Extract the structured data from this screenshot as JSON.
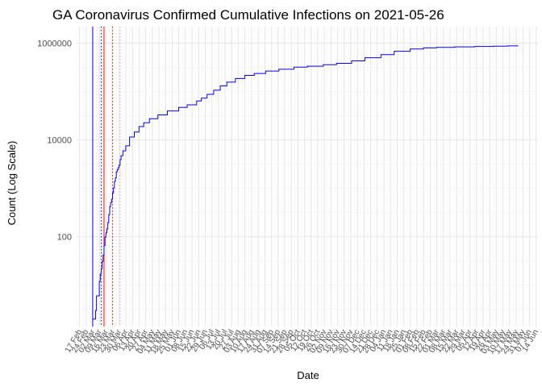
{
  "chart_data": {
    "type": "line",
    "title": "GA Coronavirus Confirmed Cumulative Infections on 2021-05-26",
    "xlabel": "Date",
    "ylabel": "Count (Log Scale)",
    "y_scale": "log10",
    "ylim": [
      1.4,
      2200000
    ],
    "xlim": [
      "2020-02-14",
      "2021-06-17"
    ],
    "grid": true,
    "legend": "none",
    "y_ticks": [
      {
        "value": 100,
        "label": "100"
      },
      {
        "value": 10000,
        "label": "10000"
      },
      {
        "value": 1000000,
        "label": "1000000"
      }
    ],
    "x_ticks": [
      {
        "date": "2020-02-17",
        "label": "17 Feb"
      },
      {
        "date": "2020-02-24",
        "label": "24 Feb"
      },
      {
        "date": "2020-03-02",
        "label": "02 Mar"
      },
      {
        "date": "2020-03-09",
        "label": "09 Mar"
      },
      {
        "date": "2020-03-16",
        "label": "16 Mar"
      },
      {
        "date": "2020-03-23",
        "label": "23 Mar"
      },
      {
        "date": "2020-03-30",
        "label": "30 Mar"
      },
      {
        "date": "2020-04-06",
        "label": "06 Apr"
      },
      {
        "date": "2020-04-13",
        "label": "13 Apr"
      },
      {
        "date": "2020-04-20",
        "label": "20 Apr"
      },
      {
        "date": "2020-04-27",
        "label": "27 Apr"
      },
      {
        "date": "2020-05-04",
        "label": "04 May"
      },
      {
        "date": "2020-05-11",
        "label": "11 May"
      },
      {
        "date": "2020-05-18",
        "label": "18 May"
      },
      {
        "date": "2020-05-25",
        "label": "25 May"
      },
      {
        "date": "2020-06-01",
        "label": "01 Jun"
      },
      {
        "date": "2020-06-08",
        "label": "08 Jun"
      },
      {
        "date": "2020-06-15",
        "label": "15 Jun"
      },
      {
        "date": "2020-06-22",
        "label": "22 Jun"
      },
      {
        "date": "2020-06-29",
        "label": "29 Jun"
      },
      {
        "date": "2020-07-06",
        "label": "06 Jul"
      },
      {
        "date": "2020-07-13",
        "label": "13 Jul"
      },
      {
        "date": "2020-07-20",
        "label": "20 Jul"
      },
      {
        "date": "2020-07-27",
        "label": "27 Jul"
      },
      {
        "date": "2020-08-03",
        "label": "03 Aug"
      },
      {
        "date": "2020-08-10",
        "label": "10 Aug"
      },
      {
        "date": "2020-08-17",
        "label": "17 Aug"
      },
      {
        "date": "2020-08-24",
        "label": "24 Aug"
      },
      {
        "date": "2020-08-31",
        "label": "31 Aug"
      },
      {
        "date": "2020-09-07",
        "label": "07 Sep"
      },
      {
        "date": "2020-09-14",
        "label": "14 Sep"
      },
      {
        "date": "2020-09-21",
        "label": "21 Sep"
      },
      {
        "date": "2020-09-28",
        "label": "28 Sep"
      },
      {
        "date": "2020-10-05",
        "label": "05 Oct"
      },
      {
        "date": "2020-10-12",
        "label": "12 Oct"
      },
      {
        "date": "2020-10-19",
        "label": "19 Oct"
      },
      {
        "date": "2020-10-26",
        "label": "26 Oct"
      },
      {
        "date": "2020-11-02",
        "label": "02 Nov"
      },
      {
        "date": "2020-11-09",
        "label": "09 Nov"
      },
      {
        "date": "2020-11-16",
        "label": "16 Nov"
      },
      {
        "date": "2020-11-23",
        "label": "23 Nov"
      },
      {
        "date": "2020-11-30",
        "label": "30 Nov"
      },
      {
        "date": "2020-12-07",
        "label": "07 Dec"
      },
      {
        "date": "2020-12-14",
        "label": "14 Dec"
      },
      {
        "date": "2020-12-21",
        "label": "21 Dec"
      },
      {
        "date": "2020-12-28",
        "label": "28 Dec"
      },
      {
        "date": "2021-01-04",
        "label": "04 Jan"
      },
      {
        "date": "2021-01-11",
        "label": "11 Jan"
      },
      {
        "date": "2021-01-18",
        "label": "18 Jan"
      },
      {
        "date": "2021-01-25",
        "label": "25 Jan"
      },
      {
        "date": "2021-02-01",
        "label": "01 Feb"
      },
      {
        "date": "2021-02-08",
        "label": "08 Feb"
      },
      {
        "date": "2021-02-15",
        "label": "15 Feb"
      },
      {
        "date": "2021-02-22",
        "label": "22 Feb"
      },
      {
        "date": "2021-03-01",
        "label": "01 Mar"
      },
      {
        "date": "2021-03-08",
        "label": "08 Mar"
      },
      {
        "date": "2021-03-15",
        "label": "15 Mar"
      },
      {
        "date": "2021-03-22",
        "label": "22 Mar"
      },
      {
        "date": "2021-03-29",
        "label": "29 Mar"
      },
      {
        "date": "2021-04-05",
        "label": "05 Apr"
      },
      {
        "date": "2021-04-12",
        "label": "12 Apr"
      },
      {
        "date": "2021-04-19",
        "label": "19 Apr"
      },
      {
        "date": "2021-04-26",
        "label": "26 Apr"
      },
      {
        "date": "2021-05-03",
        "label": "03 May"
      },
      {
        "date": "2021-05-10",
        "label": "10 May"
      },
      {
        "date": "2021-05-17",
        "label": "17 May"
      },
      {
        "date": "2021-05-24",
        "label": "24 May"
      },
      {
        "date": "2021-05-31",
        "label": "31 May"
      },
      {
        "date": "2021-06-07",
        "label": "07 Jun"
      },
      {
        "date": "2021-06-14",
        "label": "14 Jun"
      }
    ],
    "series": [
      {
        "color": "#0000ff",
        "points": [
          [
            "2020-03-02",
            2
          ],
          [
            "2020-03-04",
            2
          ],
          [
            "2020-03-05",
            3
          ],
          [
            "2020-03-06",
            6
          ],
          [
            "2020-03-07",
            6
          ],
          [
            "2020-03-08",
            6
          ],
          [
            "2020-03-09",
            12
          ],
          [
            "2020-03-10",
            17
          ],
          [
            "2020-03-11",
            22
          ],
          [
            "2020-03-12",
            31
          ],
          [
            "2020-03-13",
            42
          ],
          [
            "2020-03-14",
            66
          ],
          [
            "2020-03-15",
            99
          ],
          [
            "2020-03-16",
            121
          ],
          [
            "2020-03-17",
            146
          ],
          [
            "2020-03-18",
            197
          ],
          [
            "2020-03-19",
            287
          ],
          [
            "2020-03-20",
            420
          ],
          [
            "2020-03-21",
            507
          ],
          [
            "2020-03-22",
            600
          ],
          [
            "2020-03-23",
            800
          ],
          [
            "2020-03-24",
            1026
          ],
          [
            "2020-03-25",
            1387
          ],
          [
            "2020-03-26",
            1643
          ],
          [
            "2020-03-27",
            2198
          ],
          [
            "2020-03-28",
            2446
          ],
          [
            "2020-03-29",
            2683
          ],
          [
            "2020-03-30",
            3032
          ],
          [
            "2020-03-31",
            3929
          ],
          [
            "2020-04-01",
            4748
          ],
          [
            "2020-04-03",
            5967
          ],
          [
            "2020-04-06",
            7558
          ],
          [
            "2020-04-10",
            11483
          ],
          [
            "2020-04-15",
            14578
          ],
          [
            "2020-04-20",
            18947
          ],
          [
            "2020-04-25",
            22695
          ],
          [
            "2020-05-01",
            27489
          ],
          [
            "2020-05-10",
            33051
          ],
          [
            "2020-05-20",
            39801
          ],
          [
            "2020-06-01",
            47063
          ],
          [
            "2020-06-10",
            53249
          ],
          [
            "2020-06-20",
            64000
          ],
          [
            "2020-06-25",
            72995
          ],
          [
            "2020-07-01",
            87709
          ],
          [
            "2020-07-08",
            106727
          ],
          [
            "2020-07-15",
            131275
          ],
          [
            "2020-07-22",
            156588
          ],
          [
            "2020-07-31",
            186352
          ],
          [
            "2020-08-10",
            216596
          ],
          [
            "2020-08-20",
            237030
          ],
          [
            "2020-09-01",
            266100
          ],
          [
            "2020-09-15",
            290000
          ],
          [
            "2020-10-01",
            320000
          ],
          [
            "2020-10-15",
            335000
          ],
          [
            "2020-11-01",
            360000
          ],
          [
            "2020-11-15",
            385000
          ],
          [
            "2020-12-01",
            430000
          ],
          [
            "2020-12-15",
            500000
          ],
          [
            "2021-01-01",
            580000
          ],
          [
            "2021-01-15",
            680000
          ],
          [
            "2021-02-01",
            760000
          ],
          [
            "2021-02-15",
            800000
          ],
          [
            "2021-03-01",
            820000
          ],
          [
            "2021-03-20",
            840000
          ],
          [
            "2021-04-10",
            855000
          ],
          [
            "2021-04-30",
            870000
          ],
          [
            "2021-05-15",
            880000
          ],
          [
            "2021-05-26",
            885000
          ]
        ]
      }
    ],
    "vertical_lines": [
      {
        "date": "2020-03-02",
        "color": "#0000ff",
        "style": "solid"
      },
      {
        "date": "2020-03-11",
        "color": "#0000ff",
        "style": "dotted"
      },
      {
        "date": "2020-03-14",
        "color": "#ff0000",
        "style": "solid"
      },
      {
        "date": "2020-03-23",
        "color": "#ff0000",
        "style": "dotted"
      },
      {
        "date": "2020-03-31",
        "color": "#ff9a9a",
        "style": "dotted"
      }
    ]
  }
}
